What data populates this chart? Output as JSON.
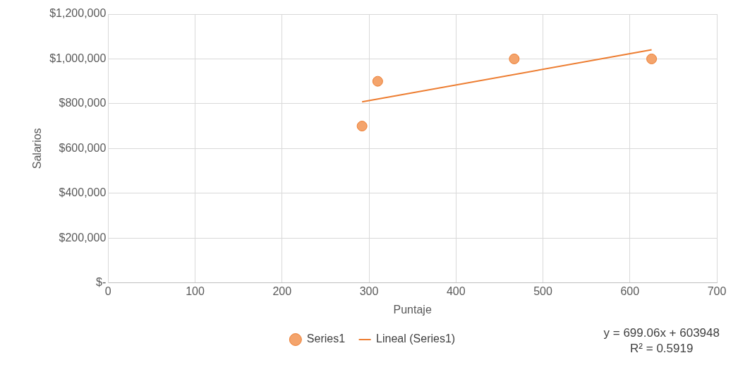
{
  "chart_data": {
    "type": "scatter",
    "xlabel": "Puntaje",
    "ylabel": "Salarios",
    "xlim": [
      0,
      700
    ],
    "xticks": [
      0,
      100,
      200,
      300,
      400,
      500,
      600,
      700
    ],
    "ylim": [
      0,
      1200000
    ],
    "yticks": [
      {
        "value": 0,
        "label": "$-"
      },
      {
        "value": 200000,
        "label": "$200,000"
      },
      {
        "value": 400000,
        "label": "$400,000"
      },
      {
        "value": 600000,
        "label": "$600,000"
      },
      {
        "value": 800000,
        "label": "$800,000"
      },
      {
        "value": 1000000,
        "label": "$1,000,000"
      },
      {
        "value": 1200000,
        "label": "$1,200,000"
      }
    ],
    "series": [
      {
        "name": "Series1",
        "type": "scatter",
        "marker": "circle",
        "color": "#f4a46c",
        "x": [
          292,
          310,
          467,
          625
        ],
        "values": [
          700000,
          900000,
          1000000,
          1000000
        ]
      },
      {
        "name": "Lineal (Series1)",
        "type": "line",
        "marker": "none",
        "color": "#ed7d31",
        "x": [
          292,
          625
        ],
        "values": [
          808000,
          1041000
        ]
      }
    ],
    "legend": "bottom",
    "grid": true,
    "annotations": [
      "y = 699.06x + 603948",
      "R² = 0.5919"
    ]
  }
}
